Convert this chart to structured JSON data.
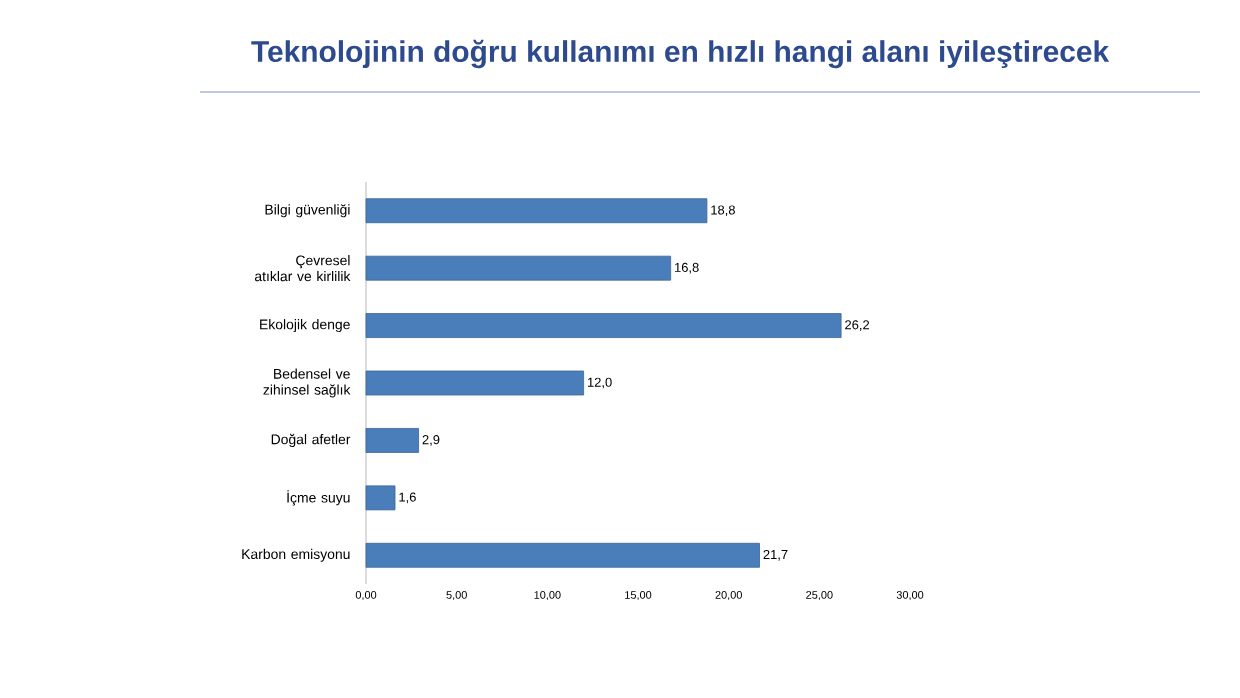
{
  "chart_data": {
    "type": "bar",
    "orientation": "horizontal",
    "title": "Teknolojinin doğru kullanımı en hızlı hangi alanı iyileştirecek",
    "categories": [
      "Bilgi güvenliği",
      "Çevresel atıklar ve kirlilik",
      "Ekolojik denge",
      "Bedensel ve zihinsel sağlık",
      "Doğal afetler",
      "İçme suyu",
      "Karbon emisyonu"
    ],
    "values": [
      18.8,
      16.8,
      26.2,
      12.0,
      2.9,
      1.6,
      21.7
    ],
    "value_labels": [
      "18,8",
      "16,8",
      "26,2",
      "12,0",
      "2,9",
      "1,6",
      "21,7"
    ],
    "color": "#4a7ebb",
    "xlim": [
      0,
      30
    ],
    "xticks": [
      {
        "value": 0,
        "label": "0,00"
      },
      {
        "value": 5,
        "label": "5,00"
      },
      {
        "value": 10,
        "label": "10,00"
      },
      {
        "value": 15,
        "label": "15,00"
      },
      {
        "value": 20,
        "label": "20,00"
      },
      {
        "value": 25,
        "label": "25,00"
      },
      {
        "value": 30,
        "label": "30,00"
      }
    ],
    "data_labels": false
  }
}
